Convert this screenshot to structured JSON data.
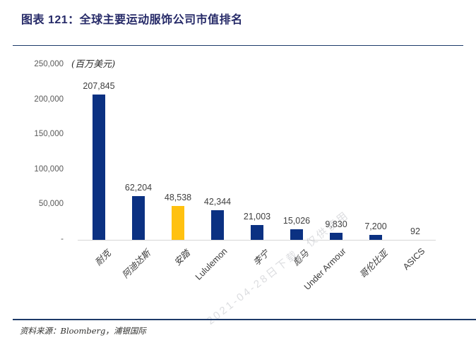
{
  "header": {
    "title": "图表 121：全球主要运动服饰公司市值排名"
  },
  "unit_label": "(百万美元)",
  "source": "资料来源：Bloomberg，浦银国际",
  "watermark": "2021-04-28日下载，仅供使用",
  "colors": {
    "bar": "#0b3182",
    "highlight": "#ffc110",
    "title_text": "#262a68",
    "rule": "#1d3a69",
    "axis_line": "#d6d6d6",
    "tick_text": "#595959",
    "value_text": "#3f3f3f"
  },
  "chart_data": {
    "type": "bar",
    "title": "全球主要运动服饰公司市值排名",
    "unit": "百万美元",
    "categories": [
      "耐克",
      "阿迪达斯",
      "安踏",
      "Lululemon",
      "李宁",
      "彪马",
      "Under Armour",
      "哥伦比亚",
      "ASICS"
    ],
    "values": [
      207845,
      62204,
      48538,
      42344,
      21003,
      15026,
      9830,
      7200,
      92
    ],
    "value_labels": [
      "207,845",
      "62,204",
      "48,538",
      "42,344",
      "21,003",
      "15,026",
      "9,830",
      "7,200",
      "92"
    ],
    "highlight_index": 2,
    "ylim": [
      0,
      250000
    ],
    "yticks": [
      {
        "label": "250,000",
        "value": 250000
      },
      {
        "label": "200,000",
        "value": 200000
      },
      {
        "label": "150,000",
        "value": 150000
      },
      {
        "label": "100,000",
        "value": 100000
      },
      {
        "label": "50,000",
        "value": 50000
      },
      {
        "label": "-",
        "value": 0
      }
    ],
    "grid": false,
    "legend": "none",
    "xlabel": "",
    "ylabel": "百万美元"
  }
}
